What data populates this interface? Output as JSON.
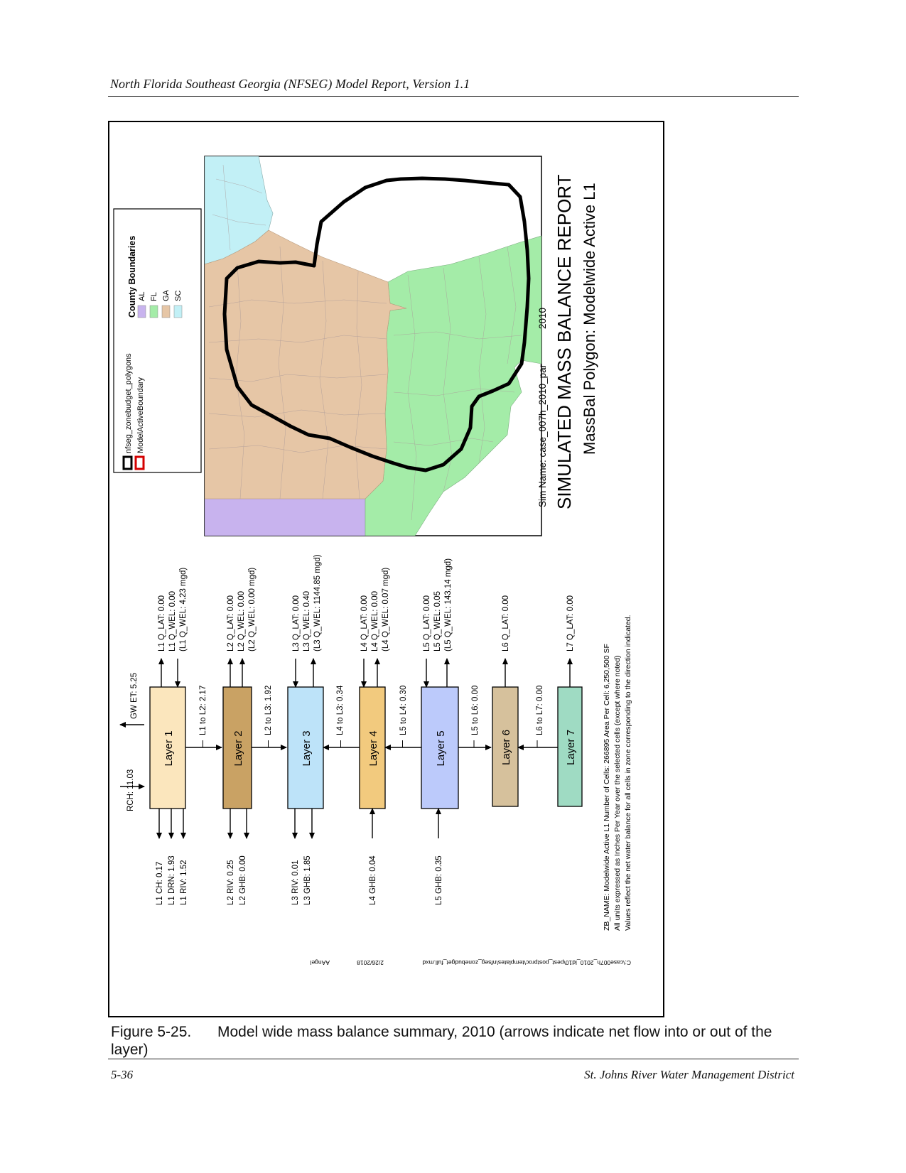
{
  "header": {
    "title": "North Florida Southeast Georgia (NFSEG) Model Report, Version 1.1"
  },
  "legend": {
    "items": [
      "nfseg_zonebudget_polygons",
      "ModelActiveBoundary"
    ],
    "group_title": "County Boundaries",
    "states": [
      {
        "code": "AL",
        "color": "#c8b3ee"
      },
      {
        "code": "FL",
        "color": "#a4eca8"
      },
      {
        "code": "GA",
        "color": "#e6c6a6"
      },
      {
        "code": "SC",
        "color": "#c2f0f6"
      }
    ]
  },
  "sim": {
    "sim_name": "Sim Name: case_007h_2010_par",
    "year": "2010",
    "title": "SIMULATED MASS BALANCE REPORT",
    "subtitle": "MassBal Polygon: Modelwide Active L1"
  },
  "layers": [
    {
      "name": "Layer 1",
      "color": "#fbe6bd"
    },
    {
      "name": "Layer 2",
      "color": "#c9a264"
    },
    {
      "name": "Layer 3",
      "color": "#bde3f9"
    },
    {
      "name": "Layer 4",
      "color": "#f2ca7e"
    },
    {
      "name": "Layer 5",
      "color": "#bccafb"
    },
    {
      "name": "Layer 6",
      "color": "#d6c19c"
    },
    {
      "name": "Layer 7",
      "color": "#9fdbc3"
    }
  ],
  "flows": {
    "rch": "RCH: 11.03",
    "gwet": "GW ET: 5.25",
    "l1_top": [
      "L1 Q_LAT: 0.00",
      "L1 Q_WEL: 0.00",
      "(L1 Q_WEL: 4.23 mgd)"
    ],
    "l2_top": [
      "L2 Q_LAT: 0.00",
      "L2 Q_WEL: 0.00",
      "(L2 Q_WEL: 0.00 mgd)"
    ],
    "l3_top": [
      "L3 Q_LAT: 0.00",
      "L3 Q_WEL: 0.40",
      "(L3 Q_WEL: 1144.85 mgd)"
    ],
    "l4_top": [
      "L4 Q_LAT: 0.00",
      "L4 Q_WEL: 0.00",
      "(L4 Q_WEL: 0.07 mgd)"
    ],
    "l5_top": [
      "L5 Q_LAT: 0.00",
      "L5 Q_WEL: 0.05",
      "(L5 Q_WEL: 143.14 mgd)"
    ],
    "l6_top": [
      "L6 Q_LAT: 0.00"
    ],
    "l7_top": [
      "L7 Q_LAT: 0.00"
    ],
    "l1_bot": [
      "L1 CH: 0.17",
      "L1 DRN: 1.93",
      "L1 RIV: 1.52"
    ],
    "l2_bot": [
      "L2 RIV: 0.25",
      "L2 GHB: 0.00"
    ],
    "l3_bot": [
      "L3 RIV: 0.01",
      "L3 GHB: 1.85"
    ],
    "l4_bot": [
      "L4 GHB: 0.04"
    ],
    "l5_bot": [
      "L5 GHB: 0.35"
    ],
    "between": [
      "L1 to L2: 2.17",
      "L2 to L3: 1.92",
      "L4 to L3: 0.34",
      "L5 to L4: 0.30",
      "L5 to L6: 0.00",
      "L6 to L7: 0.00"
    ]
  },
  "notes": [
    "ZB_NAME: Modelwide Active L1  Number of Cells: 266895  Area Per Cell: 6,250,500 SF",
    "All units expressed as Inches Per Year over the selected cells (except where noted)",
    "Values reflect the net water balance for all cells in zone corresponding to the direction indicated."
  ],
  "file_info": {
    "path": "C:\\case007h_2010_ld10\\pest_postproc\\templates\\nfseg_zonebudget_full.mxd",
    "date": "2/26/2018",
    "user": "AAngel"
  },
  "caption": {
    "label": "Figure 5-25.",
    "text": "Model wide mass balance summary, 2010 (arrows indicate net flow into or out of the layer)"
  },
  "footer": {
    "page": "5-36",
    "org": "St. Johns River Water Management District"
  }
}
